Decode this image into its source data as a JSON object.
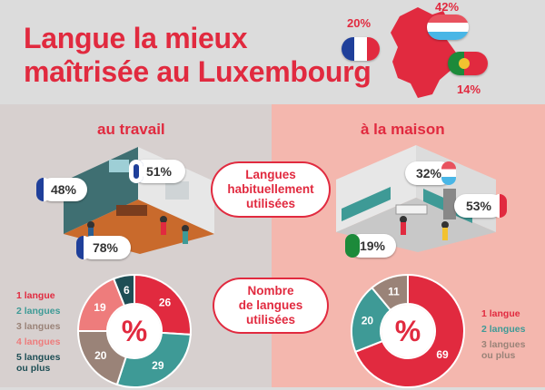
{
  "title": {
    "line1": "Langue la mieux",
    "line2": "maîtrisée au Luxembourg"
  },
  "mastery": [
    {
      "language": "french",
      "value": "20%",
      "flag": "france-flag"
    },
    {
      "language": "luxembourgish",
      "value": "42%",
      "flag": "luxembourg-flag"
    },
    {
      "language": "portuguese",
      "value": "14%",
      "flag": "portugal-flag"
    }
  ],
  "work": {
    "heading": "au travail",
    "callouts": [
      {
        "value": "48%",
        "flag": "france-flag"
      },
      {
        "value": "51%",
        "flag": "uk-flag"
      },
      {
        "value": "78%",
        "flag": "france-flag"
      }
    ]
  },
  "home": {
    "heading": "à la maison",
    "callouts": [
      {
        "value": "32%",
        "flag": "luxembourg-flag"
      },
      {
        "value": "53%",
        "flag": "france-flag"
      },
      {
        "value": "19%",
        "flag": "portugal-flag"
      }
    ]
  },
  "center": {
    "usual": [
      "Langues",
      "habituellement",
      "utilisées"
    ],
    "count": [
      "Nombre",
      "de langues",
      "utilisées"
    ]
  },
  "donut_symbol": "%",
  "colors": {
    "red": "#e12a3f",
    "teal": "#3e9a96",
    "brown": "#9a8378",
    "salmon": "#ee7c7c",
    "dark_teal": "#1e4e55"
  },
  "chart_data": [
    {
      "type": "pie",
      "name": "work",
      "categories": [
        "1 langue",
        "2 langues",
        "3 langues",
        "4 langues",
        "5 langues ou plus"
      ],
      "values": [
        26,
        29,
        20,
        19,
        6
      ],
      "colors": [
        "#e12a3f",
        "#3e9a96",
        "#9a8378",
        "#ee7c7c",
        "#1e4e55"
      ],
      "legend_lines": [
        [
          "1 langue"
        ],
        [
          "2 langues"
        ],
        [
          "3 langues"
        ],
        [
          "4 langues"
        ],
        [
          "5 langues",
          "ou plus"
        ]
      ]
    },
    {
      "type": "pie",
      "name": "home",
      "categories": [
        "1 langue",
        "2 langues",
        "3 langues ou plus"
      ],
      "values": [
        69,
        20,
        11
      ],
      "colors": [
        "#e12a3f",
        "#3e9a96",
        "#9a8378"
      ],
      "legend_lines": [
        [
          "1 langue"
        ],
        [
          "2 langues"
        ],
        [
          "3 langues",
          "ou plus"
        ]
      ]
    }
  ]
}
